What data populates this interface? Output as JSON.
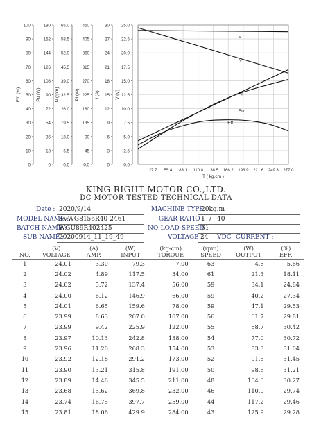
{
  "chart_data": {
    "type": "line",
    "y_axes": [
      {
        "label": "Eff. (%)",
        "ticks": [
          "100",
          "90",
          "80",
          "70",
          "60",
          "50",
          "40",
          "30",
          "20",
          "10",
          "0"
        ]
      },
      {
        "label": "Po (W)",
        "ticks": [
          "180",
          "162",
          "144",
          "126",
          "108",
          "90",
          "72",
          "54",
          "36",
          "18",
          "0"
        ]
      },
      {
        "label": "N (rpm)",
        "ticks": [
          "65.0",
          "58.5",
          "52.0",
          "45.5",
          "39.0",
          "32.5",
          "26.0",
          "19.5",
          "13.0",
          "6.5",
          "0.0"
        ]
      },
      {
        "label": "Pi (W)",
        "ticks": [
          "450",
          "405",
          "360",
          "315",
          "270",
          "225",
          "180",
          "135",
          "90",
          "45",
          "0.0"
        ]
      },
      {
        "label": "I (A)",
        "ticks": [
          "30",
          "27",
          "24",
          "21",
          "18",
          "15",
          "12",
          "9",
          "6",
          "3",
          "0"
        ]
      },
      {
        "label": "V (V)",
        "ticks": [
          "25.0",
          "22.5",
          "20.0",
          "17.5",
          "15.0",
          "12.5",
          "10.0",
          "7.5",
          "5.0",
          "2.5",
          "0.0"
        ]
      }
    ],
    "xlabel": "T ( kg.cm )",
    "x_ticks": [
      "27.7",
      "55.4",
      "83.1",
      "110.8",
      "138.5",
      "166.2",
      "193.9",
      "221.6",
      "249.3",
      "277.0"
    ],
    "xlim": [
      0,
      277
    ],
    "ylim": [
      0,
      100
    ],
    "series": [
      {
        "name": "V",
        "label_pos": [
          185,
          90.5
        ],
        "x": [
          0,
          277
        ],
        "y": [
          96.1,
          95.2
        ]
      },
      {
        "name": "N",
        "label_pos": [
          185,
          73.5
        ],
        "x": [
          0,
          277
        ],
        "y": [
          98,
          65.5
        ]
      },
      {
        "name": "Pi",
        "label_pos": [
          185,
          49.5
        ],
        "x": [
          0,
          277
        ],
        "y": [
          17,
          68
        ]
      },
      {
        "name": "Po",
        "label_pos": [
          185,
          37.5
        ],
        "x": [
          0,
          90,
          180,
          277
        ],
        "y": [
          11,
          33,
          50,
          61
        ]
      },
      {
        "name": "Eff",
        "label_pos": [
          165,
          29
        ],
        "x": [
          0,
          40,
          80,
          120,
          160,
          200,
          240,
          277
        ],
        "y": [
          14,
          22,
          27.5,
          31,
          32,
          31.5,
          29,
          24
        ]
      }
    ],
    "grid": true
  },
  "header": {
    "company": "KING RIGHT MOTOR CO.,LTD.",
    "subtitle": "DC MOTOR TESTED TECHNICAL DATA"
  },
  "info": {
    "date_label": "Date :",
    "date": "2020/9/14",
    "model_label": "MODEL NAME :",
    "model": "SVWG8156R40-2461",
    "batch_label": "BATCH NAME :",
    "batch": "WGU89R402425",
    "sub_label": "SUB NAME :",
    "sub": "20200914_11_19_49",
    "machine_label": "MACHINE TYPE :",
    "machine": "20kg.m",
    "gear_label": "GEAR RATIO :",
    "gear_a": "1",
    "gear_sep": "/",
    "gear_b": "40",
    "noload_label": "NO-LOAD-SPEED :",
    "noload": "61",
    "voltage_label": "VOLTAGE :",
    "voltage": "24",
    "vdc": "VDC",
    "current_label": "CURRENT :"
  },
  "table": {
    "units": [
      "",
      "(V)",
      "(A)",
      "(W)",
      "(kg-cm)",
      "(rpm)",
      "(W)",
      "(%)"
    ],
    "columns": [
      "NO.",
      "VOLTAGE",
      "AMP.",
      "INPUT",
      "TORQUE",
      "SPEED",
      "OUTPUT",
      "EFF."
    ],
    "rows": [
      [
        "1",
        "24.01",
        "3.30",
        "79.3",
        "7.00",
        "63",
        "4.5",
        "5.66"
      ],
      [
        "2",
        "24.02",
        "4.89",
        "117.5",
        "34.00",
        "61",
        "21.3",
        "18.11"
      ],
      [
        "3",
        "24.02",
        "5.72",
        "137.4",
        "56.00",
        "59",
        "34.1",
        "24.84"
      ],
      [
        "4",
        "24.00",
        "6.12",
        "146.9",
        "66.00",
        "59",
        "40.2",
        "27.34"
      ],
      [
        "5",
        "24.01",
        "6.65",
        "159.6",
        "78.00",
        "59",
        "47.1",
        "29.53"
      ],
      [
        "6",
        "23.99",
        "8.63",
        "207.0",
        "107.00",
        "56",
        "61.7",
        "29.81"
      ],
      [
        "7",
        "23.99",
        "9.42",
        "225.9",
        "122.00",
        "55",
        "68.7",
        "30.42"
      ],
      [
        "8",
        "23.97",
        "10.13",
        "242.8",
        "138.00",
        "54",
        "77.0",
        "30.72"
      ],
      [
        "9",
        "23.96",
        "11.20",
        "268.3",
        "154.00",
        "53",
        "83.3",
        "31.04"
      ],
      [
        "10",
        "23.92",
        "12.18",
        "291.2",
        "173.00",
        "52",
        "91.6",
        "31.45"
      ],
      [
        "11",
        "23.90",
        "13.21",
        "315.8",
        "191.00",
        "50",
        "98.6",
        "31.21"
      ],
      [
        "12",
        "23.89",
        "14.46",
        "345.5",
        "211.00",
        "48",
        "104.6",
        "30.27"
      ],
      [
        "13",
        "23.68",
        "15.62",
        "369.8",
        "232.00",
        "46",
        "110.0",
        "29.74"
      ],
      [
        "14",
        "23.74",
        "16.75",
        "397.7",
        "259.00",
        "44",
        "117.2",
        "29.46"
      ],
      [
        "15",
        "23.81",
        "18.06",
        "429.9",
        "284.00",
        "43",
        "125.9",
        "29.28"
      ]
    ]
  }
}
